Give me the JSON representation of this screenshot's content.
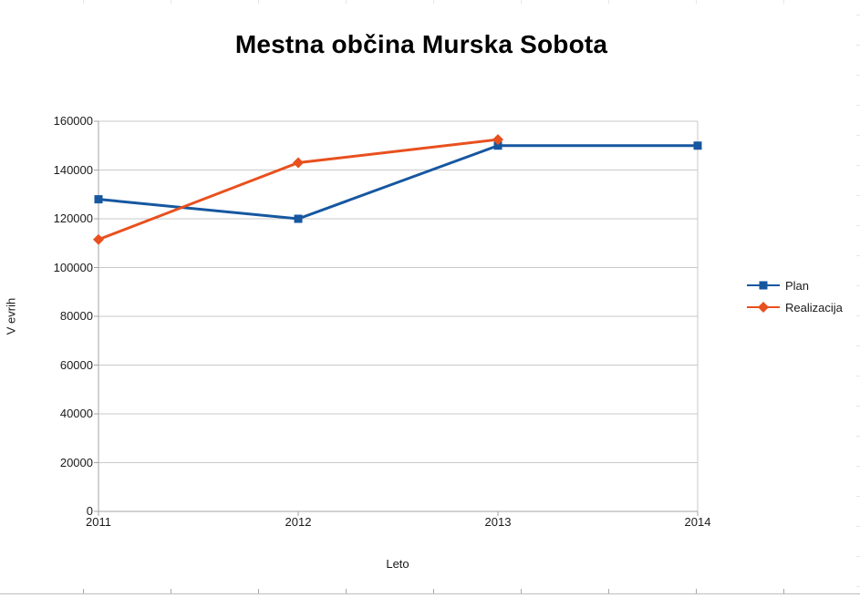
{
  "window": {
    "background": "#ffffff"
  },
  "chart_data": {
    "type": "line",
    "title": "Mestna občina Murska Sobota",
    "xlabel": "Leto",
    "ylabel": "V evrih",
    "categories": [
      "2011",
      "2012",
      "2013",
      "2014"
    ],
    "series": [
      {
        "name": "Plan",
        "values": [
          128000,
          120000,
          150000,
          150000
        ],
        "color": "#1657A0",
        "marker": "square"
      },
      {
        "name": "Realizacija",
        "values": [
          111500,
          143000,
          152500,
          null
        ],
        "color": "#E8501E",
        "marker": "diamond"
      }
    ],
    "ylim": [
      0,
      160000
    ],
    "y_tick_step": 20000,
    "y_tick_labels": [
      "0",
      "20000",
      "40000",
      "60000",
      "80000",
      "100000",
      "120000",
      "140000",
      "160000"
    ],
    "grid": "horizontal",
    "legend_position": "right"
  },
  "legend": {
    "entries": [
      "Plan",
      "Realizacija"
    ]
  },
  "colors": {
    "grid": "#c9c9c9",
    "axis": "#a6a6a6",
    "tick_text": "#1a1a1a",
    "title_text": "#000000",
    "cell_stub_light": "#e7e7e7",
    "cell_stub_dark": "#a8a8a8",
    "cell_bottom_line": "#bdbdbd"
  }
}
